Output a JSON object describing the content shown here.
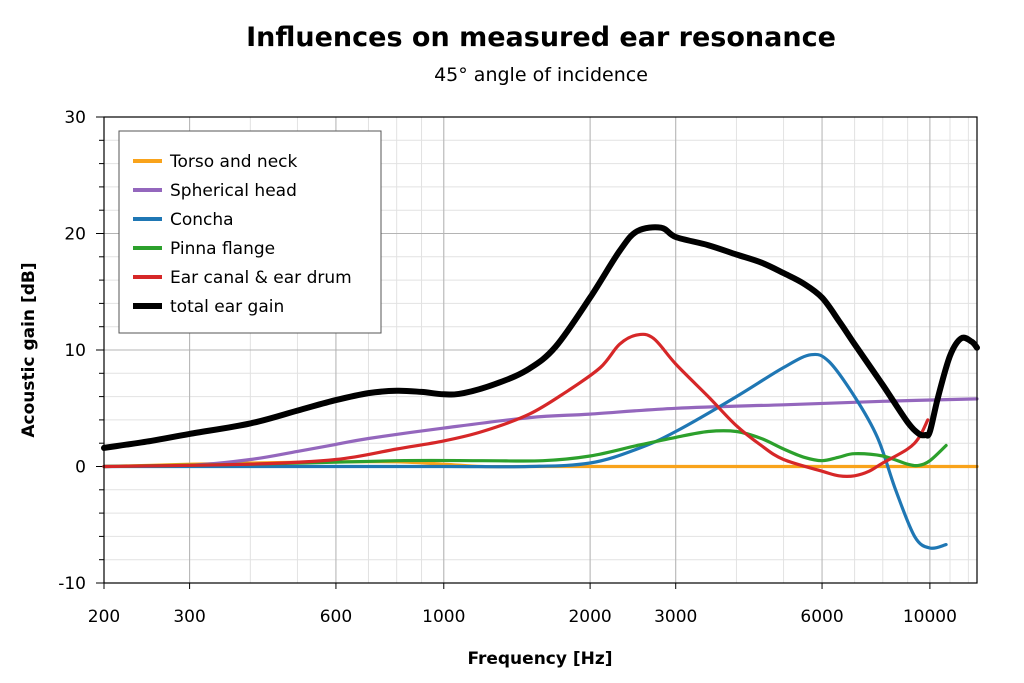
{
  "chart_data": {
    "type": "line",
    "title": "Influences on measured ear resonance",
    "subtitle": "45° angle of incidence",
    "xlabel": "Frequency [Hz]",
    "ylabel": "Acoustic gain [dB]",
    "x_scale": "log",
    "xlim": [
      200,
      12500
    ],
    "ylim": [
      -10,
      30
    ],
    "x_ticks": [
      200,
      300,
      600,
      1000,
      2000,
      3000,
      6000,
      10000
    ],
    "x_tick_labels": [
      "200",
      "300",
      "600",
      "1000",
      "2000",
      "3000",
      "6000",
      "10000"
    ],
    "y_ticks": [
      -10,
      0,
      10,
      20,
      30
    ],
    "y_tick_labels": [
      "-10",
      "0",
      "10",
      "20",
      "30"
    ],
    "grid": true,
    "legend_position": "top-left",
    "series": [
      {
        "name": "Torso and neck",
        "color": "#f9a31b",
        "points": [
          [
            200,
            0
          ],
          [
            250,
            0.1
          ],
          [
            300,
            0.2
          ],
          [
            400,
            0.3
          ],
          [
            600,
            0.4
          ],
          [
            800,
            0.4
          ],
          [
            1000,
            0.2
          ],
          [
            1200,
            0
          ],
          [
            1500,
            0
          ],
          [
            2000,
            0
          ],
          [
            3000,
            0
          ],
          [
            4000,
            0
          ],
          [
            6000,
            0
          ],
          [
            8000,
            0
          ],
          [
            12500,
            0
          ]
        ]
      },
      {
        "name": "Spherical head",
        "color": "#9467bd",
        "points": [
          [
            200,
            0
          ],
          [
            300,
            0.1
          ],
          [
            400,
            0.6
          ],
          [
            500,
            1.3
          ],
          [
            600,
            1.9
          ],
          [
            700,
            2.4
          ],
          [
            1000,
            3.3
          ],
          [
            1500,
            4.2
          ],
          [
            2000,
            4.5
          ],
          [
            3000,
            5
          ],
          [
            5000,
            5.3
          ],
          [
            8000,
            5.6
          ],
          [
            12500,
            5.8
          ]
        ]
      },
      {
        "name": "Concha",
        "color": "#1f77b4",
        "points": [
          [
            200,
            0
          ],
          [
            500,
            0
          ],
          [
            1000,
            0
          ],
          [
            1500,
            0
          ],
          [
            2000,
            0.3
          ],
          [
            2500,
            1.5
          ],
          [
            3000,
            3
          ],
          [
            4000,
            6
          ],
          [
            5000,
            8.5
          ],
          [
            5700,
            9.6
          ],
          [
            6200,
            9
          ],
          [
            7000,
            6
          ],
          [
            7800,
            2.5
          ],
          [
            8500,
            -2
          ],
          [
            9300,
            -6
          ],
          [
            10000,
            -7
          ],
          [
            10800,
            -6.7
          ]
        ]
      },
      {
        "name": "Pinna flange",
        "color": "#2ca02c",
        "points": [
          [
            200,
            0
          ],
          [
            400,
            0.2
          ],
          [
            800,
            0.5
          ],
          [
            1200,
            0.5
          ],
          [
            1600,
            0.5
          ],
          [
            2000,
            0.9
          ],
          [
            2500,
            1.8
          ],
          [
            3000,
            2.5
          ],
          [
            3500,
            3
          ],
          [
            4000,
            3
          ],
          [
            4500,
            2.4
          ],
          [
            5000,
            1.5
          ],
          [
            5500,
            0.8
          ],
          [
            6000,
            0.5
          ],
          [
            6500,
            0.8
          ],
          [
            7000,
            1.1
          ],
          [
            8000,
            0.9
          ],
          [
            9000,
            0.2
          ],
          [
            9500,
            0.1
          ],
          [
            10000,
            0.5
          ],
          [
            10800,
            1.8
          ]
        ]
      },
      {
        "name": "Ear canal & ear drum",
        "color": "#d62728",
        "points": [
          [
            200,
            0
          ],
          [
            400,
            0.2
          ],
          [
            600,
            0.6
          ],
          [
            800,
            1.5
          ],
          [
            1000,
            2.2
          ],
          [
            1200,
            3
          ],
          [
            1500,
            4.5
          ],
          [
            1800,
            6.5
          ],
          [
            2100,
            8.5
          ],
          [
            2300,
            10.5
          ],
          [
            2500,
            11.3
          ],
          [
            2700,
            11
          ],
          [
            3000,
            8.8
          ],
          [
            3500,
            6
          ],
          [
            4000,
            3.5
          ],
          [
            4500,
            1.8
          ],
          [
            5000,
            0.6
          ],
          [
            6000,
            -0.4
          ],
          [
            6500,
            -0.8
          ],
          [
            7000,
            -0.8
          ],
          [
            7500,
            -0.4
          ],
          [
            8000,
            0.3
          ],
          [
            9000,
            1.5
          ],
          [
            9500,
            2.5
          ],
          [
            9900,
            4
          ]
        ]
      },
      {
        "name": "total ear gain",
        "color": "#000000",
        "points": [
          [
            200,
            1.6
          ],
          [
            250,
            2.2
          ],
          [
            300,
            2.8
          ],
          [
            400,
            3.7
          ],
          [
            500,
            4.8
          ],
          [
            600,
            5.7
          ],
          [
            700,
            6.3
          ],
          [
            800,
            6.5
          ],
          [
            900,
            6.4
          ],
          [
            1000,
            6.2
          ],
          [
            1100,
            6.3
          ],
          [
            1300,
            7.2
          ],
          [
            1500,
            8.4
          ],
          [
            1700,
            10.3
          ],
          [
            2000,
            14.5
          ],
          [
            2300,
            18.5
          ],
          [
            2500,
            20.2
          ],
          [
            2800,
            20.5
          ],
          [
            3000,
            19.7
          ],
          [
            3500,
            19
          ],
          [
            4000,
            18.2
          ],
          [
            4500,
            17.5
          ],
          [
            5000,
            16.6
          ],
          [
            5500,
            15.7
          ],
          [
            6000,
            14.5
          ],
          [
            6500,
            12.5
          ],
          [
            7000,
            10.5
          ],
          [
            8000,
            7
          ],
          [
            9000,
            3.8
          ],
          [
            9500,
            2.8
          ],
          [
            9800,
            2.7
          ],
          [
            10000,
            3
          ],
          [
            10400,
            6
          ],
          [
            11000,
            9.5
          ],
          [
            11600,
            11
          ],
          [
            12200,
            10.7
          ],
          [
            12500,
            10.2
          ]
        ]
      }
    ]
  }
}
